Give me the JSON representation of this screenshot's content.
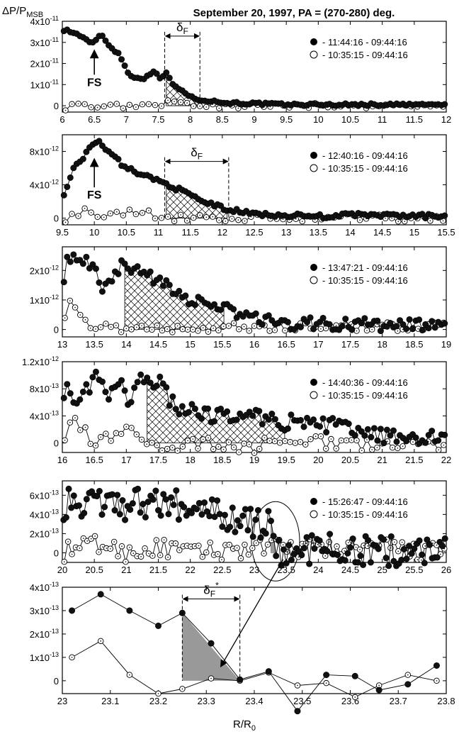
{
  "figure": {
    "title": "September 20, 1997, PA = (270-280) deg.",
    "ylabel_main": "ΔP/P",
    "ylabel_sub": "MSB",
    "xlabel_main": "R/R",
    "xlabel_sub": "0"
  },
  "chart_data": [
    {
      "type": "line",
      "panel": 1,
      "xlim": [
        6,
        12
      ],
      "ylim": [
        -0.3,
        4
      ],
      "ytick_exp": -11,
      "xticks": [
        "6",
        "6.5",
        "7",
        "7.5",
        "8",
        "8.5",
        "9",
        "9.5",
        "10",
        "10.5",
        "11",
        "11.5",
        "12"
      ],
      "yticks": [
        {
          "v": 0,
          "label": "0"
        },
        {
          "v": 1,
          "mant": "1x10",
          "exp": "-11"
        },
        {
          "v": 2,
          "mant": "2x10",
          "exp": "-11"
        },
        {
          "v": 3,
          "mant": "3x10",
          "exp": "-11"
        },
        {
          "v": 4,
          "mant": "4x10",
          "exp": "-11"
        }
      ],
      "series": [
        {
          "name": "- 11:44:16 - 09:44:16",
          "marker": "filled",
          "anchors": [
            [
              6.05,
              3.6
            ],
            [
              6.3,
              3.3
            ],
            [
              6.45,
              2.9
            ],
            [
              6.6,
              3.4
            ],
            [
              6.75,
              2.8
            ],
            [
              6.9,
              2.4
            ],
            [
              7.05,
              1.4
            ],
            [
              7.3,
              1.3
            ],
            [
              7.45,
              1.7
            ],
            [
              7.55,
              1.2
            ],
            [
              7.62,
              1.6
            ],
            [
              7.75,
              0.9
            ],
            [
              7.9,
              0.7
            ],
            [
              8.0,
              0.4
            ],
            [
              8.15,
              0.3
            ],
            [
              8.5,
              0.15
            ],
            [
              9,
              0.1
            ],
            [
              9.5,
              0.05
            ],
            [
              10,
              0.05
            ],
            [
              12,
              0.05
            ]
          ],
          "step": 0.05,
          "noise": 0.06
        },
        {
          "name": "- 10:35:15 - 09:44:16",
          "marker": "open",
          "anchors": [
            [
              6.05,
              -0.1
            ],
            [
              6.2,
              0.1
            ],
            [
              6.4,
              0.0
            ],
            [
              6.6,
              -0.2
            ],
            [
              6.8,
              0.1
            ],
            [
              7.0,
              -0.1
            ],
            [
              7.2,
              0.1
            ],
            [
              7.5,
              0.0
            ],
            [
              7.62,
              0.2
            ],
            [
              7.8,
              0.1
            ],
            [
              8.0,
              0.0
            ],
            [
              9,
              0.0
            ],
            [
              12,
              0.0
            ]
          ],
          "step": 0.1,
          "noise": 0.12
        }
      ],
      "legend_pos": "top-right",
      "annotations": {
        "fs": {
          "label": "FS",
          "x": 6.5,
          "y_tip": 2.9,
          "y_text": 1.0
        },
        "delta": {
          "x1": 7.6,
          "x2": 8.15,
          "label": "δ",
          "sub": "F",
          "sup": "",
          "y_arrow": 3.3
        },
        "hatch": {
          "x1": 7.6,
          "x2": 8.15
        }
      }
    },
    {
      "type": "line",
      "panel": 2,
      "xlim": [
        9.5,
        15.5
      ],
      "ylim": [
        -0.08,
        1.0
      ],
      "ytick_exp": -12,
      "xticks": [
        "9.5",
        "10",
        "10.5",
        "11",
        "11.5",
        "12",
        "12.5",
        "13",
        "13.5",
        "14",
        "14.5",
        "15",
        "15.5"
      ],
      "yticks": [
        {
          "v": 0,
          "label": "0"
        },
        {
          "v": 0.4,
          "mant": "4x10",
          "exp": "-12"
        },
        {
          "v": 0.8,
          "mant": "8x10",
          "exp": "-12"
        }
      ],
      "series": [
        {
          "name": "- 12:40:16 - 09:44:16",
          "marker": "filled",
          "anchors": [
            [
              9.55,
              0.3
            ],
            [
              9.7,
              0.65
            ],
            [
              9.85,
              0.75
            ],
            [
              10.05,
              0.95
            ],
            [
              10.2,
              0.8
            ],
            [
              10.5,
              0.6
            ],
            [
              11.0,
              0.45
            ],
            [
              11.1,
              0.42
            ],
            [
              11.3,
              0.35
            ],
            [
              11.7,
              0.2
            ],
            [
              12.1,
              0.1
            ],
            [
              12.5,
              0.05
            ],
            [
              13.5,
              0.02
            ],
            [
              14,
              0.04
            ],
            [
              15.5,
              0.02
            ]
          ],
          "step": 0.05,
          "noise": 0.025
        },
        {
          "name": "- 10:35:15 - 09:44:16",
          "marker": "open",
          "anchors": [
            [
              9.6,
              0.0
            ],
            [
              9.8,
              0.1
            ],
            [
              10.0,
              0.0
            ],
            [
              10.3,
              0.05
            ],
            [
              10.8,
              0.1
            ],
            [
              11.0,
              0.0
            ],
            [
              11.5,
              0.02
            ],
            [
              12,
              0.0
            ],
            [
              15.5,
              0.0
            ]
          ],
          "step": 0.1,
          "noise": 0.05
        }
      ],
      "legend_pos": "top-right",
      "annotations": {
        "fs": {
          "label": "FS",
          "x": 10.0,
          "y_tip": 0.78,
          "y_text": 0.25
        },
        "delta": {
          "x1": 11.1,
          "x2": 12.1,
          "label": "δ",
          "sub": "F",
          "sup": "",
          "y_arrow": 0.68
        },
        "hatch": {
          "x1": 11.1,
          "x2": 12.1
        }
      }
    },
    {
      "type": "line",
      "panel": 3,
      "xlim": [
        13,
        19
      ],
      "ylim": [
        -0.25,
        2.8
      ],
      "ytick_exp": -12,
      "xticks": [
        "13",
        "13.5",
        "14",
        "14.5",
        "15",
        "15.5",
        "16",
        "16.5",
        "17",
        "17.5",
        "18",
        "18.5",
        "19"
      ],
      "yticks": [
        {
          "v": 0,
          "label": "0"
        },
        {
          "v": 1,
          "mant": "1x10",
          "exp": "-12"
        },
        {
          "v": 2,
          "mant": "2x10",
          "exp": "-12"
        }
      ],
      "series": [
        {
          "name": "- 13:47:21 - 09:44:16",
          "marker": "filled",
          "anchors": [
            [
              13.0,
              1.6
            ],
            [
              13.1,
              2.5
            ],
            [
              13.25,
              2.2
            ],
            [
              13.45,
              2.3
            ],
            [
              13.6,
              1.4
            ],
            [
              13.8,
              1.8
            ],
            [
              13.95,
              2.2
            ],
            [
              14.3,
              1.8
            ],
            [
              14.6,
              1.6
            ],
            [
              15.0,
              1.0
            ],
            [
              15.5,
              0.7
            ],
            [
              16.0,
              0.4
            ],
            [
              16.5,
              0.2
            ],
            [
              17,
              0.2
            ],
            [
              19,
              0.1
            ]
          ],
          "step": 0.05,
          "noise": 0.22
        },
        {
          "name": "- 10:35:15 - 09:44:16",
          "marker": "open",
          "anchors": [
            [
              13.0,
              0.3
            ],
            [
              13.1,
              0.9
            ],
            [
              13.25,
              0.7
            ],
            [
              13.5,
              -0.1
            ],
            [
              13.75,
              0.2
            ],
            [
              14.0,
              -0.1
            ],
            [
              14.5,
              0.1
            ],
            [
              15.0,
              0.0
            ],
            [
              15.5,
              0.1
            ],
            [
              16,
              0.1
            ],
            [
              19,
              0.1
            ]
          ],
          "step": 0.08,
          "noise": 0.15
        }
      ],
      "legend_pos": "top-right",
      "annotations": {
        "hatch": {
          "x1": 13.95,
          "x2": 15.55
        }
      }
    },
    {
      "type": "line",
      "panel": 4,
      "xlim": [
        16,
        22
      ],
      "ylim": [
        -0.14,
        1.2
      ],
      "ytick_exp": -13,
      "xticks": [
        "16",
        "16.5",
        "17",
        "17.5",
        "18",
        "18.5",
        "19",
        "19.5",
        "20",
        "20.5",
        "21",
        "21.5",
        "22"
      ],
      "yticks": [
        {
          "v": 0,
          "label": "0"
        },
        {
          "v": 0.4,
          "mant": "4x10",
          "exp": "-13"
        },
        {
          "v": 0.8,
          "mant": "8x10",
          "exp": "-13"
        },
        {
          "v": 1.2,
          "mant": "1.2x10",
          "exp": "-12"
        }
      ],
      "series": [
        {
          "name": "- 14:40:36 - 09:44:16",
          "marker": "filled",
          "anchors": [
            [
              16.0,
              0.8
            ],
            [
              16.3,
              0.6
            ],
            [
              16.5,
              1.0
            ],
            [
              16.7,
              0.7
            ],
            [
              16.9,
              0.9
            ],
            [
              17.05,
              0.55
            ],
            [
              17.25,
              1.0
            ],
            [
              17.5,
              0.9
            ],
            [
              17.8,
              0.5
            ],
            [
              18.5,
              0.4
            ],
            [
              19,
              0.4
            ],
            [
              19.5,
              0.3
            ],
            [
              20,
              0.3
            ],
            [
              20.5,
              0.2
            ],
            [
              21,
              0.1
            ],
            [
              22,
              0.05
            ]
          ],
          "step": 0.05,
          "noise": 0.12
        },
        {
          "name": "- 10:35:15 - 09:44:16",
          "marker": "open",
          "anchors": [
            [
              16.0,
              0.1
            ],
            [
              16.2,
              0.3
            ],
            [
              16.5,
              0.0
            ],
            [
              17.0,
              0.2
            ],
            [
              17.5,
              -0.05
            ],
            [
              18,
              0.0
            ],
            [
              19,
              -0.05
            ],
            [
              19.5,
              0.05
            ],
            [
              20,
              0.0
            ],
            [
              21,
              -0.05
            ],
            [
              22,
              0.0
            ]
          ],
          "step": 0.08,
          "noise": 0.1
        }
      ],
      "legend_pos": "top-right",
      "annotations": {
        "hatch": {
          "x1": 17.3,
          "x2": 19.5
        }
      }
    },
    {
      "type": "line",
      "panel": 5,
      "xlim": [
        20,
        26
      ],
      "ylim": [
        -0.1,
        0.75
      ],
      "ytick_exp": -13,
      "xticks": [
        "20",
        "20.5",
        "21",
        "21.5",
        "22",
        "22.5",
        "23",
        "23.5",
        "24",
        "24.5",
        "25",
        "25.5",
        "26"
      ],
      "yticks": [
        {
          "v": 0,
          "label": "0"
        },
        {
          "v": 0.2,
          "mant": "2x10",
          "exp": "-13"
        },
        {
          "v": 0.4,
          "mant": "4x10",
          "exp": "-13"
        },
        {
          "v": 0.6,
          "mant": "6x10",
          "exp": "-13"
        }
      ],
      "series": [
        {
          "name": "- 15:26:47 - 09:44:16",
          "marker": "filled",
          "anchors": [
            [
              20.0,
              0.5
            ],
            [
              20.5,
              0.55
            ],
            [
              21.0,
              0.5
            ],
            [
              21.5,
              0.55
            ],
            [
              22.0,
              0.45
            ],
            [
              22.5,
              0.4
            ],
            [
              23.0,
              0.3
            ],
            [
              23.25,
              0.29
            ],
            [
              23.37,
              0.01
            ],
            [
              23.5,
              -0.05
            ],
            [
              24,
              0.05
            ],
            [
              25,
              0.02
            ],
            [
              26,
              0.0
            ]
          ],
          "step": 0.04,
          "noise": 0.16
        },
        {
          "name": "- 10:35:15 - 09:44:16",
          "marker": "open",
          "anchors": [
            [
              20.0,
              0.0
            ],
            [
              20.5,
              0.1
            ],
            [
              21.0,
              0.0
            ],
            [
              21.5,
              0.05
            ],
            [
              22,
              0.0
            ],
            [
              23,
              0.05
            ],
            [
              24,
              0.05
            ],
            [
              25,
              0.05
            ],
            [
              26,
              0.0
            ]
          ],
          "step": 0.06,
          "noise": 0.1
        }
      ],
      "legend_pos": "top-right",
      "annotations": {
        "shade": {
          "x1": 23.25,
          "x2": 23.37
        }
      }
    },
    {
      "type": "line",
      "panel": 6,
      "xlim": [
        23,
        23.8
      ],
      "ylim": [
        -0.55,
        4
      ],
      "ytick_exp": -13,
      "xticks": [
        "23",
        "23.1",
        "23.2",
        "23.3",
        "23.4",
        "23.5",
        "23.6",
        "23.7",
        "23.8"
      ],
      "yticks": [
        {
          "v": 0,
          "label": "0"
        },
        {
          "v": 1,
          "mant": "1x10",
          "exp": "-13"
        },
        {
          "v": 2,
          "mant": "2x10",
          "exp": "-13"
        },
        {
          "v": 3,
          "mant": "3x10",
          "exp": "-13"
        },
        {
          "v": 4,
          "mant": "4x10",
          "exp": "-13"
        }
      ],
      "series": [
        {
          "name": "- 15:26:47 - 09:44:16",
          "marker": "filled",
          "points": [
            [
              23.02,
              3.0
            ],
            [
              23.08,
              3.7
            ],
            [
              23.14,
              3.0
            ],
            [
              23.2,
              2.35
            ],
            [
              23.25,
              2.9
            ],
            [
              23.31,
              1.6
            ],
            [
              23.37,
              0.05
            ],
            [
              23.43,
              0.4
            ],
            [
              23.49,
              -1.3
            ],
            [
              23.55,
              0.25
            ],
            [
              23.61,
              0.2
            ],
            [
              23.66,
              -0.4
            ],
            [
              23.72,
              -0.15
            ],
            [
              23.78,
              0.65
            ]
          ]
        },
        {
          "name": "- 10:35:15 - 09:44:16",
          "marker": "open",
          "points": [
            [
              23.02,
              1.0
            ],
            [
              23.08,
              1.7
            ],
            [
              23.14,
              0.25
            ],
            [
              23.2,
              -0.55
            ],
            [
              23.25,
              -0.35
            ],
            [
              23.31,
              0.1
            ],
            [
              23.37,
              0.0
            ],
            [
              23.43,
              0.35
            ],
            [
              23.49,
              -0.2
            ],
            [
              23.55,
              -0.1
            ],
            [
              23.61,
              -0.7
            ],
            [
              23.66,
              -0.2
            ],
            [
              23.72,
              0.25
            ],
            [
              23.78,
              0.0
            ]
          ]
        }
      ],
      "legend_pos": "none",
      "annotations": {
        "delta": {
          "x1": 23.25,
          "x2": 23.37,
          "label": "δ",
          "sub": "F",
          "sup": "*",
          "y_arrow": 3.5
        },
        "shade_tri": {
          "x1": 23.25,
          "y1": 2.9,
          "x2": 23.37
        }
      }
    }
  ]
}
